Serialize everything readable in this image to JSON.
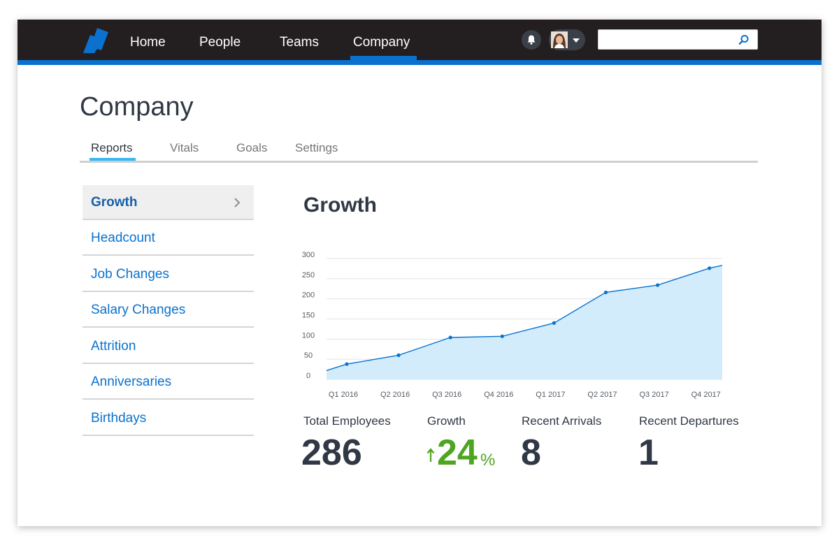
{
  "nav": {
    "items": [
      {
        "label": "Home"
      },
      {
        "label": "People"
      },
      {
        "label": "Teams"
      },
      {
        "label": "Company"
      }
    ],
    "active": "Company",
    "search": {
      "value": "",
      "placeholder": ""
    }
  },
  "page": {
    "title": "Company",
    "tabs": [
      {
        "label": "Reports"
      },
      {
        "label": "Vitals"
      },
      {
        "label": "Goals"
      },
      {
        "label": "Settings"
      }
    ],
    "active_tab": "Reports"
  },
  "sidebar": {
    "items": [
      {
        "label": "Growth"
      },
      {
        "label": "Headcount"
      },
      {
        "label": "Job Changes"
      },
      {
        "label": "Salary Changes"
      },
      {
        "label": "Attrition"
      },
      {
        "label": "Anniversaries"
      },
      {
        "label": "Birthdays"
      }
    ],
    "active": "Growth"
  },
  "report": {
    "title": "Growth"
  },
  "chart_data": {
    "type": "area",
    "categories": [
      "Q1 2016",
      "Q2 2016",
      "Q3 2016",
      "Q4 2016",
      "Q1 2017",
      "Q2 2017",
      "Q3 2017",
      "Q4 2017"
    ],
    "values": [
      38,
      60,
      104,
      107,
      140,
      216,
      234,
      276
    ],
    "start_value": 22,
    "end_value": 283,
    "yticks": [
      0,
      50,
      100,
      150,
      200,
      250,
      300
    ],
    "ylim": [
      0,
      300
    ],
    "grid": true,
    "title": "",
    "xlabel": "",
    "ylabel": "",
    "colors": {
      "line": "#0a72ce",
      "fill": "#d3ecfb"
    }
  },
  "stats": {
    "total_employees": {
      "label": "Total Employees",
      "value": "286"
    },
    "growth": {
      "label": "Growth",
      "value": "24",
      "unit": "%"
    },
    "recent_arrivals": {
      "label": "Recent Arrivals",
      "value": "8"
    },
    "recent_departures": {
      "label": "Recent Departures",
      "value": "1"
    }
  },
  "colors": {
    "nav_bg": "#231f20",
    "accent": "#0a72ce",
    "tab_accent": "#37b8f3",
    "positive": "#4ea520"
  }
}
